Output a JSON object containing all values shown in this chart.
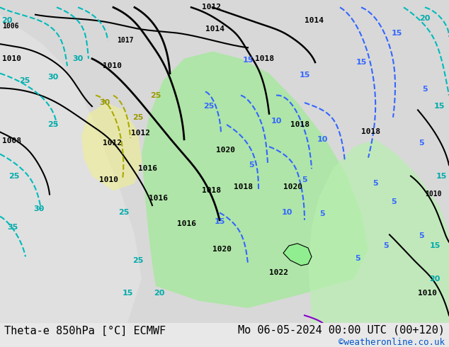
{
  "title_left": "Theta-e 850hPa [°C] ECMWF",
  "title_right": "Mo 06-05-2024 00:00 UTC (00+120)",
  "credit": "©weatheronline.co.uk",
  "bg_color": "#e8e8e8",
  "map_bg_color": "#f0f0f0",
  "green_fill_color": "#90ee90",
  "light_green_fill": "#c8f0c8",
  "white_fill": "#ffffff",
  "black_contour_color": "#000000",
  "blue_contour_color": "#4488ff",
  "cyan_contour_color": "#00cccc",
  "yellow_contour_color": "#cccc00",
  "purple_contour_color": "#8800cc",
  "title_fontsize": 11,
  "credit_fontsize": 9,
  "credit_color": "#0055cc",
  "figwidth": 6.34,
  "figheight": 4.9,
  "dpi": 100
}
